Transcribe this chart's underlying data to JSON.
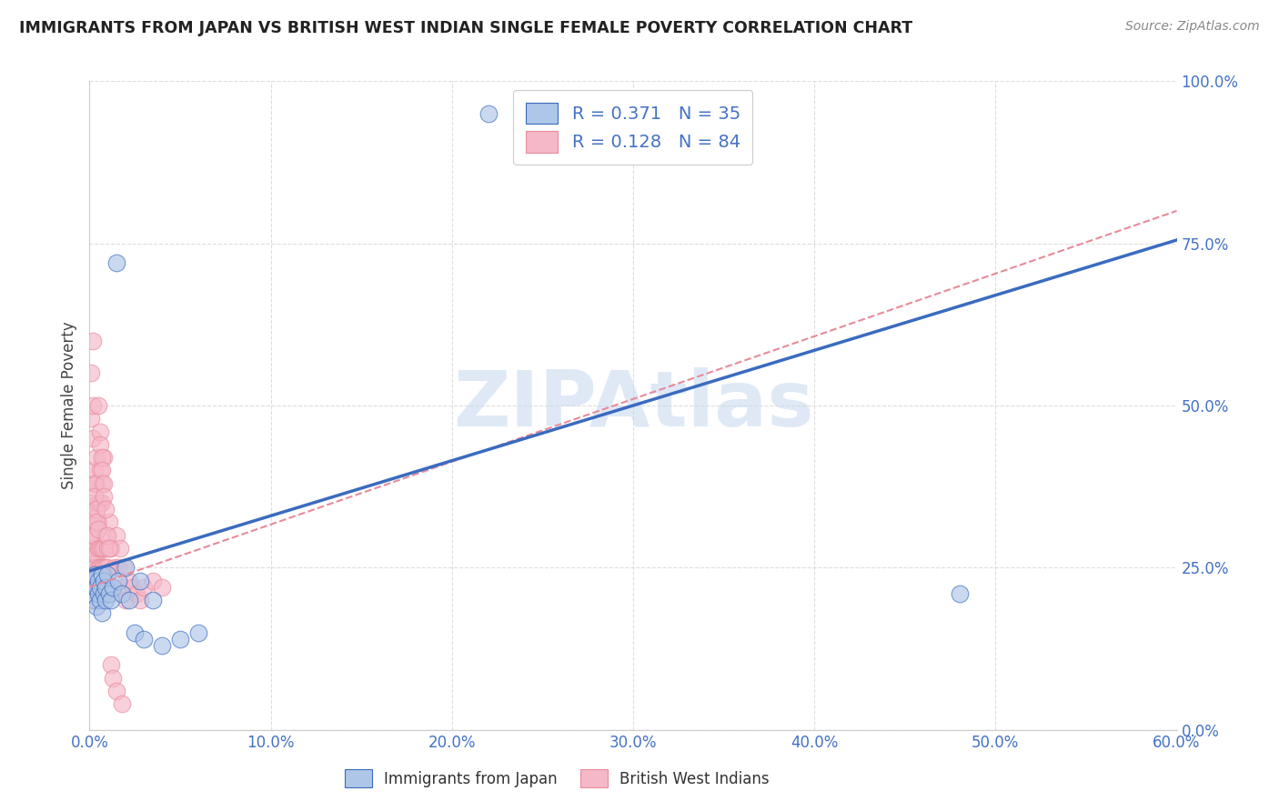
{
  "title": "IMMIGRANTS FROM JAPAN VS BRITISH WEST INDIAN SINGLE FEMALE POVERTY CORRELATION CHART",
  "source": "Source: ZipAtlas.com",
  "ylabel": "Single Female Poverty",
  "legend_label1": "Immigrants from Japan",
  "legend_label2": "British West Indians",
  "R1": 0.371,
  "N1": 35,
  "R2": 0.128,
  "N2": 84,
  "color_japan": "#aec6e8",
  "color_bwi": "#f5b8c8",
  "line_color_japan": "#3a6bbf",
  "line_color_bwi": "#e88a9a",
  "xmin": 0.0,
  "xmax": 0.6,
  "ymin": 0.0,
  "ymax": 1.0,
  "xticks": [
    0.0,
    0.1,
    0.2,
    0.3,
    0.4,
    0.5,
    0.6
  ],
  "yticks": [
    0.0,
    0.25,
    0.5,
    0.75,
    1.0
  ],
  "watermark": "ZIPAtlas",
  "blue_line": [
    0.0,
    0.245,
    0.6,
    0.755
  ],
  "pink_line": [
    0.0,
    0.22,
    0.6,
    0.8
  ],
  "japan_x": [
    0.001,
    0.002,
    0.002,
    0.003,
    0.003,
    0.004,
    0.004,
    0.005,
    0.005,
    0.006,
    0.006,
    0.007,
    0.007,
    0.008,
    0.008,
    0.009,
    0.009,
    0.01,
    0.011,
    0.012,
    0.013,
    0.015,
    0.016,
    0.018,
    0.02,
    0.022,
    0.025,
    0.028,
    0.03,
    0.035,
    0.04,
    0.05,
    0.06,
    0.48,
    0.22
  ],
  "japan_y": [
    0.22,
    0.21,
    0.23,
    0.2,
    0.24,
    0.22,
    0.19,
    0.21,
    0.23,
    0.2,
    0.22,
    0.18,
    0.24,
    0.21,
    0.23,
    0.2,
    0.22,
    0.24,
    0.21,
    0.2,
    0.22,
    0.72,
    0.23,
    0.21,
    0.25,
    0.2,
    0.15,
    0.23,
    0.14,
    0.2,
    0.13,
    0.14,
    0.15,
    0.21,
    0.95
  ],
  "bwi_x": [
    0.001,
    0.001,
    0.001,
    0.001,
    0.001,
    0.002,
    0.002,
    0.002,
    0.002,
    0.002,
    0.002,
    0.003,
    0.003,
    0.003,
    0.003,
    0.003,
    0.003,
    0.004,
    0.004,
    0.004,
    0.004,
    0.004,
    0.005,
    0.005,
    0.005,
    0.005,
    0.005,
    0.006,
    0.006,
    0.006,
    0.006,
    0.006,
    0.007,
    0.007,
    0.007,
    0.007,
    0.008,
    0.008,
    0.008,
    0.009,
    0.009,
    0.01,
    0.01,
    0.011,
    0.012,
    0.013,
    0.014,
    0.015,
    0.016,
    0.017,
    0.018,
    0.019,
    0.02,
    0.022,
    0.024,
    0.026,
    0.028,
    0.03,
    0.035,
    0.04,
    0.001,
    0.001,
    0.002,
    0.002,
    0.002,
    0.003,
    0.003,
    0.004,
    0.004,
    0.005,
    0.005,
    0.006,
    0.006,
    0.007,
    0.007,
    0.008,
    0.008,
    0.009,
    0.01,
    0.011,
    0.012,
    0.013,
    0.015,
    0.018
  ],
  "bwi_y": [
    0.22,
    0.25,
    0.28,
    0.3,
    0.35,
    0.25,
    0.28,
    0.3,
    0.33,
    0.22,
    0.2,
    0.27,
    0.3,
    0.38,
    0.4,
    0.22,
    0.25,
    0.33,
    0.38,
    0.42,
    0.27,
    0.22,
    0.32,
    0.28,
    0.25,
    0.35,
    0.22,
    0.4,
    0.35,
    0.28,
    0.25,
    0.22,
    0.38,
    0.35,
    0.28,
    0.25,
    0.42,
    0.28,
    0.25,
    0.3,
    0.25,
    0.28,
    0.25,
    0.32,
    0.28,
    0.22,
    0.25,
    0.3,
    0.25,
    0.28,
    0.22,
    0.25,
    0.2,
    0.23,
    0.22,
    0.21,
    0.2,
    0.22,
    0.23,
    0.22,
    0.55,
    0.48,
    0.6,
    0.5,
    0.45,
    0.38,
    0.36,
    0.34,
    0.32,
    0.31,
    0.5,
    0.46,
    0.44,
    0.42,
    0.4,
    0.38,
    0.36,
    0.34,
    0.3,
    0.28,
    0.1,
    0.08,
    0.06,
    0.04
  ]
}
